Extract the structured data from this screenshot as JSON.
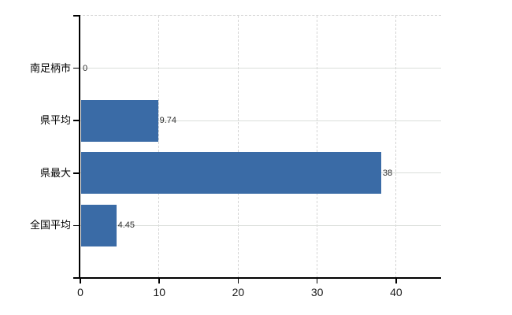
{
  "chart_data": {
    "type": "bar",
    "orientation": "horizontal",
    "title": "",
    "xlabel": "",
    "ylabel": "",
    "categories": [
      "南足柄市",
      "県平均",
      "県最大",
      "全国平均"
    ],
    "values": [
      0,
      9.74,
      38,
      4.45
    ],
    "value_labels": [
      "0",
      "9.74",
      "38",
      "4.45"
    ],
    "x_ticks": [
      0,
      10,
      20,
      30,
      40
    ],
    "xlim": [
      0,
      45.7
    ],
    "grid": true,
    "legend": "none",
    "colors": {
      "bar": "#3A6BA6",
      "grid_dashed": "#D4D4D4",
      "grid_solid": "#DADEDA",
      "axis": "#000000",
      "background": "#FFFFFF"
    }
  }
}
